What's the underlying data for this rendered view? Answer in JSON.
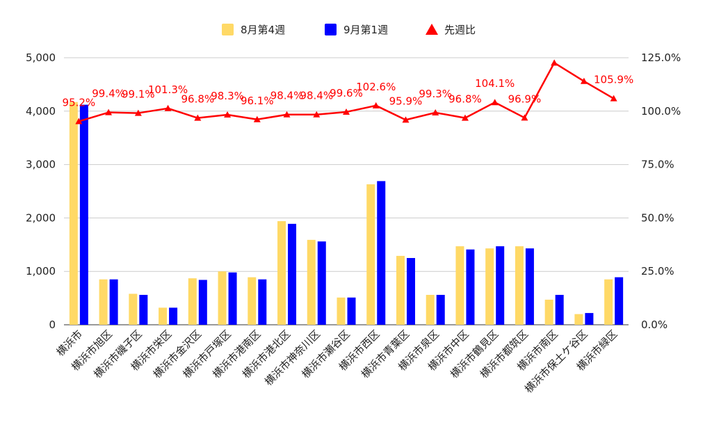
{
  "chart_data": {
    "type": "bar",
    "categories": [
      "横浜市",
      "横浜市旭区",
      "横浜市磯子区",
      "横浜市栄区",
      "横浜市金沢区",
      "横浜市戸塚区",
      "横浜市港南区",
      "横浜市港北区",
      "横浜市神奈川区",
      "横浜市瀬谷区",
      "横浜市西区",
      "横浜市青葉区",
      "横浜市泉区",
      "横浜市中区",
      "横浜市鶴見区",
      "横浜市都筑区",
      "横浜市南区",
      "横浜市保土ケ谷区",
      "横浜市緑区"
    ],
    "series": [
      {
        "name": "8月第4週",
        "type": "bar",
        "axis": "left",
        "color": "#FFD966",
        "values": [
          4170,
          850,
          580,
          320,
          870,
          1000,
          890,
          1940,
          1590,
          510,
          2630,
          1290,
          560,
          1470,
          1430,
          1470,
          470,
          200,
          850
        ]
      },
      {
        "name": "9月第1週",
        "type": "bar",
        "axis": "left",
        "color": "#0000FF",
        "values": [
          4120,
          850,
          560,
          320,
          840,
          980,
          850,
          1890,
          1560,
          510,
          2690,
          1250,
          560,
          1410,
          1470,
          1430,
          560,
          220,
          890
        ]
      },
      {
        "name": "先週比",
        "type": "line",
        "axis": "right",
        "color": "#FF0000",
        "marker": "triangle",
        "values": [
          95.2,
          99.4,
          99.1,
          101.3,
          96.8,
          98.3,
          96.1,
          98.4,
          98.4,
          99.6,
          102.6,
          95.9,
          99.3,
          96.8,
          104.1,
          96.9,
          122.6,
          114.0,
          105.9
        ],
        "labels": [
          "95.2%",
          "99.4%",
          "99.1%",
          "101.3%",
          "96.8%",
          "98.3%",
          "96.1%",
          "98.4%",
          "98.4%",
          "99.6%",
          "102.6%",
          "95.9%",
          "99.3%",
          "96.8%",
          "104.1%",
          "96.9%",
          "",
          "",
          "105.9%"
        ]
      }
    ],
    "y_left": {
      "min": 0,
      "max": 5000,
      "ticks": [
        "0",
        "1,000",
        "2,000",
        "3,000",
        "4,000",
        "5,000"
      ]
    },
    "y_right": {
      "min": 0,
      "max": 125,
      "ticks": [
        "0.0%",
        "25.0%",
        "50.0%",
        "75.0%",
        "100.0%",
        "125.0%"
      ]
    },
    "title": "",
    "xlabel": "",
    "ylabel": "",
    "legend_position": "top",
    "grid": true
  }
}
